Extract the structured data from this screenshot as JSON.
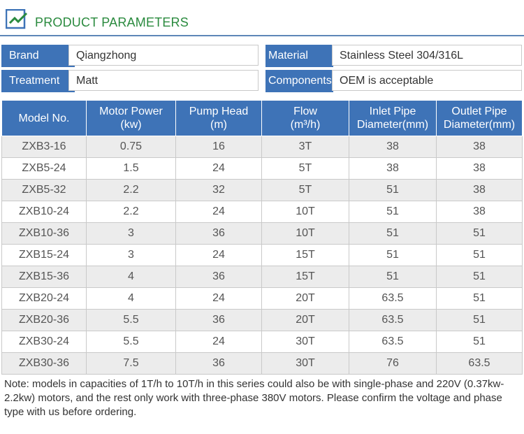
{
  "header": {
    "title": "PRODUCT PARAMETERS",
    "title_color": "#2a8a3e",
    "accent_color": "#3e73b7",
    "logo_icon": "box-check-icon"
  },
  "params": [
    {
      "label": "Brand",
      "value": "Qiangzhong"
    },
    {
      "label": "Material",
      "value": "Stainless Steel 304/316L"
    },
    {
      "label": "Treatment",
      "value": "Matt"
    },
    {
      "label": "Components",
      "value": "OEM is acceptable"
    }
  ],
  "table": {
    "headers": [
      [
        "Model No."
      ],
      [
        "Motor Power",
        "(kw)"
      ],
      [
        "Pump Head",
        "(m)"
      ],
      [
        "Flow",
        "(m³/h)"
      ],
      [
        "Inlet Pipe",
        "Diameter(mm)"
      ],
      [
        "Outlet Pipe",
        "Diameter(mm)"
      ]
    ],
    "rows": [
      [
        "ZXB3-16",
        "0.75",
        "16",
        "3T",
        "38",
        "38"
      ],
      [
        "ZXB5-24",
        "1.5",
        "24",
        "5T",
        "38",
        "38"
      ],
      [
        "ZXB5-32",
        "2.2",
        "32",
        "5T",
        "51",
        "38"
      ],
      [
        "ZXB10-24",
        "2.2",
        "24",
        "10T",
        "51",
        "38"
      ],
      [
        "ZXB10-36",
        "3",
        "36",
        "10T",
        "51",
        "51"
      ],
      [
        "ZXB15-24",
        "3",
        "24",
        "15T",
        "51",
        "51"
      ],
      [
        "ZXB15-36",
        "4",
        "36",
        "15T",
        "51",
        "51"
      ],
      [
        "ZXB20-24",
        "4",
        "24",
        "20T",
        "63.5",
        "51"
      ],
      [
        "ZXB20-36",
        "5.5",
        "36",
        "20T",
        "63.5",
        "51"
      ],
      [
        "ZXB30-24",
        "5.5",
        "24",
        "30T",
        "63.5",
        "51"
      ],
      [
        "ZXB30-36",
        "7.5",
        "36",
        "30T",
        "76",
        "63.5"
      ]
    ]
  },
  "note": "Note: models in capacities of 1T/h to 10T/h in this series could also be with single-phase and 220V (0.37kw-2.2kw) motors, and the rest only work with three-phase 380V motors. Please confirm the voltage and phase type with us before ordering."
}
